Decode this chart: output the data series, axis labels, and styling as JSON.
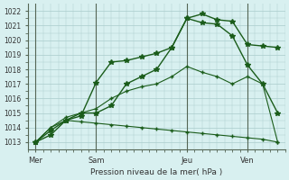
{
  "bg_color": "#d8f0f0",
  "grid_color": "#aacccc",
  "line_color": "#1a5c1a",
  "marker_color": "#1a5c1a",
  "xlabel": "Pression niveau de la mer( hPa )",
  "ylim": [
    1012.5,
    1022.5
  ],
  "yticks": [
    1013,
    1014,
    1015,
    1016,
    1017,
    1018,
    1019,
    1020,
    1021,
    1022
  ],
  "xtick_labels": [
    "Mer",
    "Sam",
    "Jeu",
    "Ven"
  ],
  "xtick_positions": [
    0,
    4,
    10,
    14
  ],
  "vlines": [
    0,
    4,
    10,
    14
  ],
  "series": [
    {
      "x": [
        0,
        1,
        2,
        3,
        4,
        5,
        6,
        7,
        8,
        9,
        10,
        11,
        12,
        13,
        14,
        15,
        16
      ],
      "y": [
        1013.0,
        1013.5,
        1014.5,
        1015.0,
        1015.0,
        1015.5,
        1017.0,
        1017.5,
        1018.0,
        1019.5,
        1021.5,
        1021.8,
        1021.4,
        1021.3,
        1019.7,
        1019.6,
        1019.5
      ],
      "marker": "*",
      "ms": 4,
      "lw": 1.0
    },
    {
      "x": [
        0,
        1,
        2,
        3,
        4,
        5,
        6,
        7,
        8,
        9,
        10,
        11,
        12,
        13,
        14,
        15,
        16
      ],
      "y": [
        1013.0,
        1013.8,
        1014.5,
        1014.8,
        1017.1,
        1018.5,
        1018.6,
        1018.85,
        1019.1,
        1019.5,
        1021.5,
        1021.2,
        1021.1,
        1020.3,
        1018.3,
        1017.0,
        1015.0
      ],
      "marker": "*",
      "ms": 4,
      "lw": 1.0
    },
    {
      "x": [
        0,
        1,
        2,
        3,
        4,
        5,
        6,
        7,
        8,
        9,
        10,
        11,
        12,
        13,
        14,
        15,
        16
      ],
      "y": [
        1013.0,
        1014.0,
        1014.7,
        1015.0,
        1015.3,
        1016.0,
        1016.5,
        1016.8,
        1017.0,
        1017.5,
        1018.2,
        1017.8,
        1017.5,
        1017.0,
        1017.5,
        1017.0,
        1013.0
      ],
      "marker": "+",
      "ms": 3.5,
      "lw": 0.8
    },
    {
      "x": [
        0,
        1,
        2,
        3,
        4,
        5,
        6,
        7,
        8,
        9,
        10,
        11,
        12,
        13,
        14,
        15,
        16
      ],
      "y": [
        1013.0,
        1014.0,
        1014.5,
        1014.4,
        1014.3,
        1014.2,
        1014.1,
        1014.0,
        1013.9,
        1013.8,
        1013.7,
        1013.6,
        1013.5,
        1013.4,
        1013.3,
        1013.2,
        1013.0
      ],
      "marker": "+",
      "ms": 3.5,
      "lw": 0.8
    }
  ]
}
